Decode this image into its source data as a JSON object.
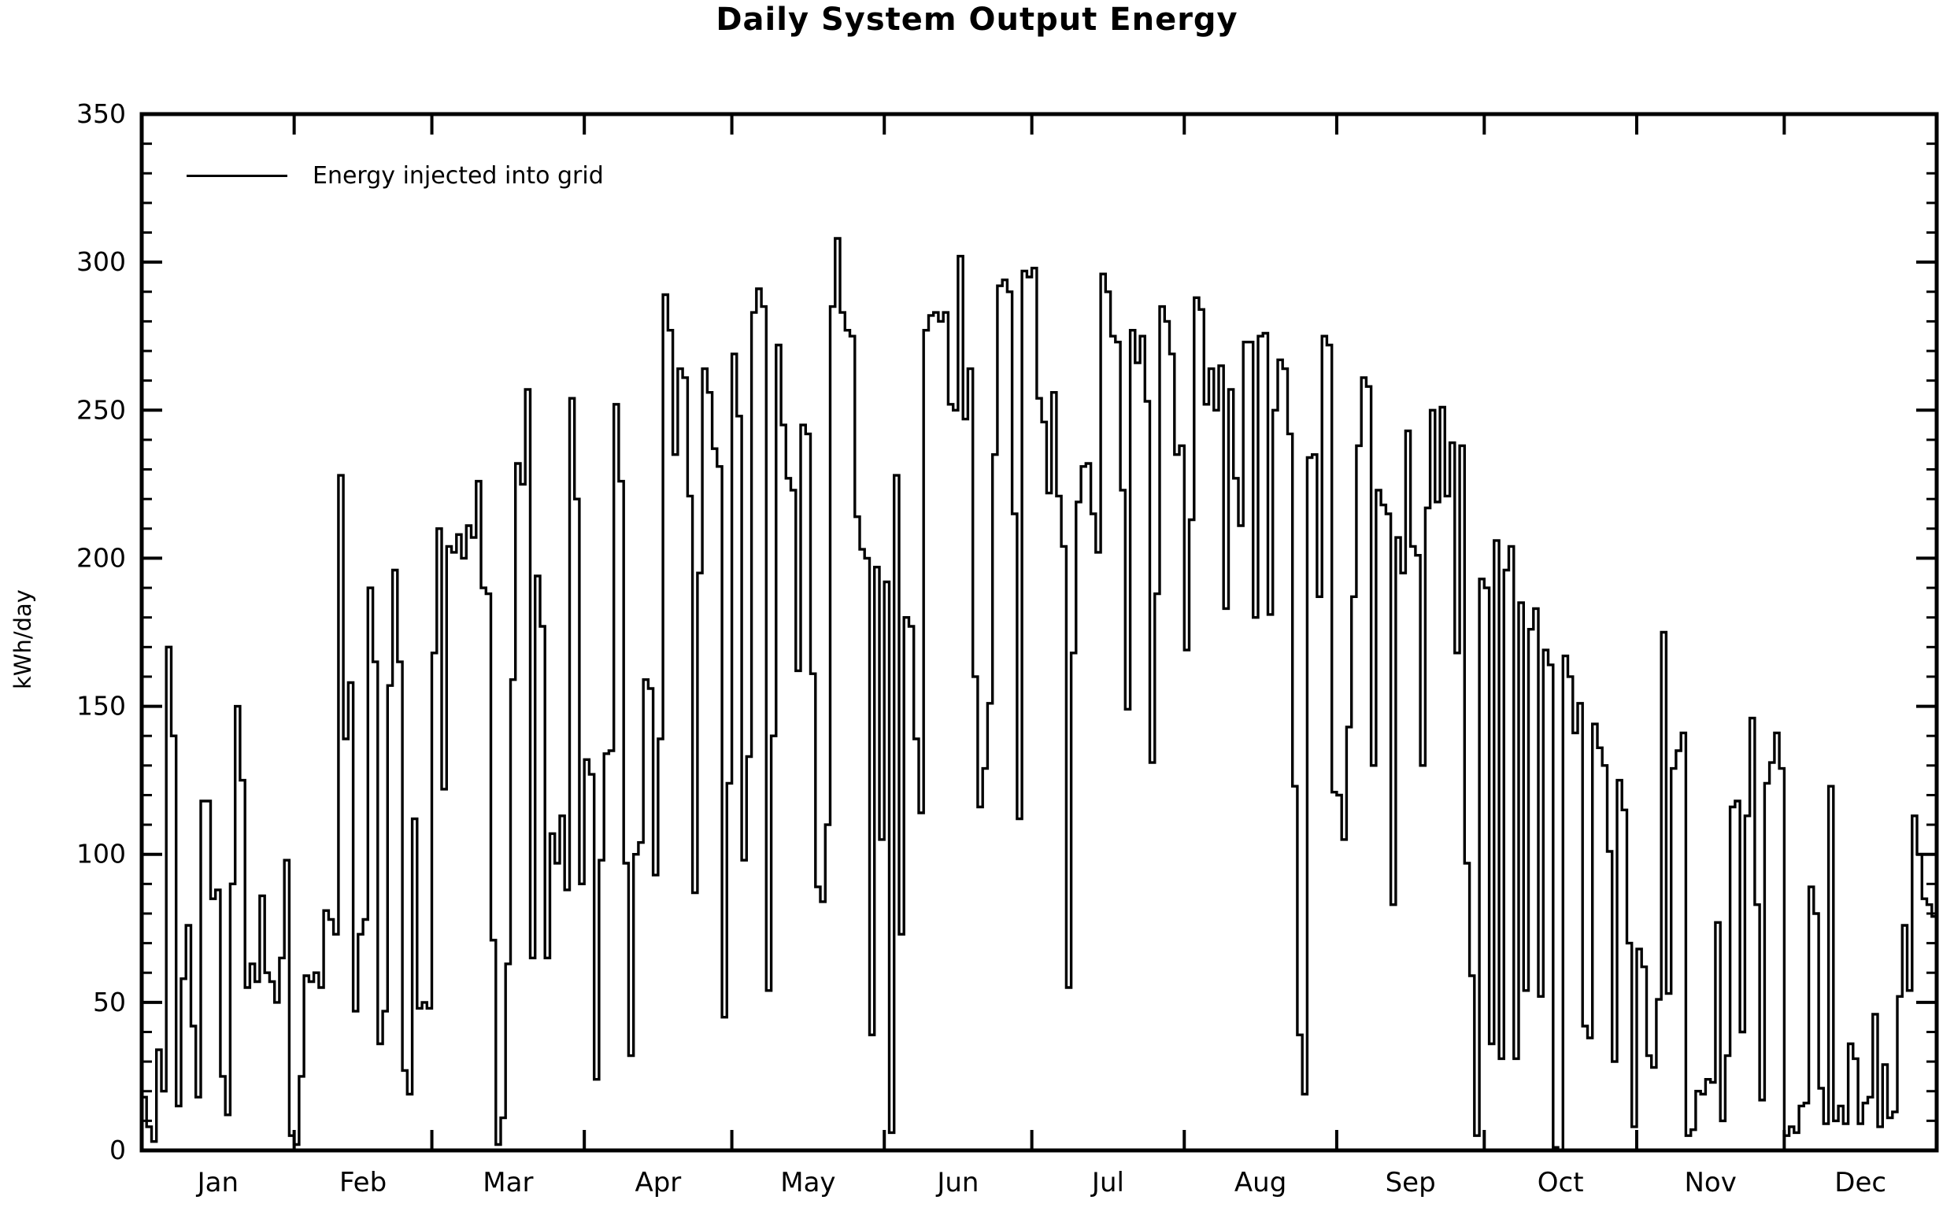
{
  "page": {
    "background": "#ffffff"
  },
  "chart": {
    "title": "Daily System Output Energy",
    "ylabel": "kWh/day",
    "legend_label": "Energy injected into grid",
    "line_color": "#000000",
    "axis_color": "#000000",
    "text_color": "#000000"
  },
  "chart_data": {
    "type": "line",
    "step": true,
    "title": "Daily System Output Energy",
    "xlabel": "",
    "ylabel": "kWh/day",
    "ylim": [
      0,
      350
    ],
    "y_tick_major": 50,
    "y_tick_minor": 10,
    "grid": false,
    "legend": [
      "Energy injected into grid"
    ],
    "legend_position": "top-left",
    "x_axis": "day of year, grouped by month",
    "series_name": "Energy injected into grid",
    "months": [
      {
        "label": "Jan",
        "values": [
          18,
          8,
          3,
          34,
          20,
          170,
          140,
          15,
          58,
          76,
          42,
          18,
          118,
          118,
          85,
          88,
          25,
          12,
          90,
          150,
          125,
          55,
          63,
          57,
          86,
          60,
          57,
          50,
          65,
          98,
          5
        ]
      },
      {
        "label": "Feb",
        "values": [
          2,
          25,
          59,
          57,
          60,
          55,
          81,
          78,
          73,
          228,
          139,
          158,
          47,
          73,
          78,
          190,
          165,
          36,
          47,
          157,
          196,
          165,
          27,
          19,
          112,
          48,
          50,
          48
        ]
      },
      {
        "label": "Mar",
        "values": [
          168,
          210,
          122,
          204,
          202,
          208,
          200,
          211,
          207,
          226,
          190,
          188,
          71,
          2,
          11,
          63,
          159,
          232,
          225,
          257,
          65,
          194,
          177,
          65,
          107,
          97,
          113,
          88,
          254,
          220,
          90
        ]
      },
      {
        "label": "Apr",
        "values": [
          132,
          127,
          24,
          98,
          134,
          135,
          252,
          226,
          97,
          32,
          100,
          104,
          159,
          156,
          93,
          139,
          289,
          277,
          235,
          264,
          261,
          221,
          87,
          195,
          264,
          256,
          237,
          231,
          45,
          124
        ]
      },
      {
        "label": "May",
        "values": [
          269,
          248,
          98,
          133,
          283,
          291,
          285,
          54,
          140,
          272,
          245,
          227,
          223,
          162,
          245,
          242,
          161,
          89,
          84,
          110,
          285,
          308,
          283,
          277,
          275,
          214,
          203,
          200,
          39,
          197,
          105
        ]
      },
      {
        "label": "Jun",
        "values": [
          192,
          6,
          228,
          73,
          180,
          177,
          139,
          114,
          277,
          282,
          283,
          280,
          283,
          252,
          250,
          302,
          247,
          264,
          160,
          116,
          129,
          151,
          235,
          292,
          294,
          290,
          215,
          112,
          297,
          295
        ]
      },
      {
        "label": "Jul",
        "values": [
          298,
          254,
          246,
          222,
          256,
          221,
          204,
          55,
          168,
          219,
          231,
          232,
          215,
          202,
          296,
          290,
          275,
          273,
          223,
          149,
          277,
          266,
          275,
          253,
          131,
          188,
          285,
          280,
          269,
          235,
          238
        ]
      },
      {
        "label": "Aug",
        "values": [
          169,
          213,
          288,
          284,
          252,
          264,
          250,
          265,
          183,
          257,
          227,
          211,
          273,
          273,
          180,
          275,
          276,
          181,
          250,
          267,
          264,
          242,
          123,
          39,
          19,
          234,
          235,
          187,
          275,
          272,
          121
        ]
      },
      {
        "label": "Sep",
        "values": [
          120,
          105,
          143,
          187,
          238,
          261,
          258,
          130,
          223,
          218,
          215,
          83,
          207,
          195,
          243,
          204,
          201,
          130,
          217,
          250,
          219,
          251,
          221,
          239,
          168,
          238,
          97,
          59,
          5,
          193
        ]
      },
      {
        "label": "Oct",
        "values": [
          190,
          36,
          206,
          31,
          196,
          204,
          31,
          185,
          54,
          176,
          183,
          52,
          169,
          164,
          1,
          0,
          167,
          160,
          141,
          151,
          42,
          38,
          144,
          136,
          130,
          101,
          30,
          125,
          115,
          70,
          8
        ]
      },
      {
        "label": "Nov",
        "values": [
          68,
          62,
          32,
          28,
          51,
          175,
          53,
          129,
          135,
          141,
          5,
          7,
          20,
          19,
          24,
          23,
          77,
          10,
          32,
          116,
          118,
          40,
          113,
          146,
          83,
          17,
          124,
          131,
          141,
          129
        ]
      },
      {
        "label": "Dec",
        "values": [
          5,
          8,
          6,
          15,
          16,
          89,
          80,
          21,
          9,
          123,
          10,
          15,
          9,
          36,
          31,
          9,
          16,
          18,
          46,
          8,
          29,
          11,
          13,
          52,
          76,
          54,
          113,
          100,
          85,
          83,
          79
        ]
      }
    ]
  }
}
